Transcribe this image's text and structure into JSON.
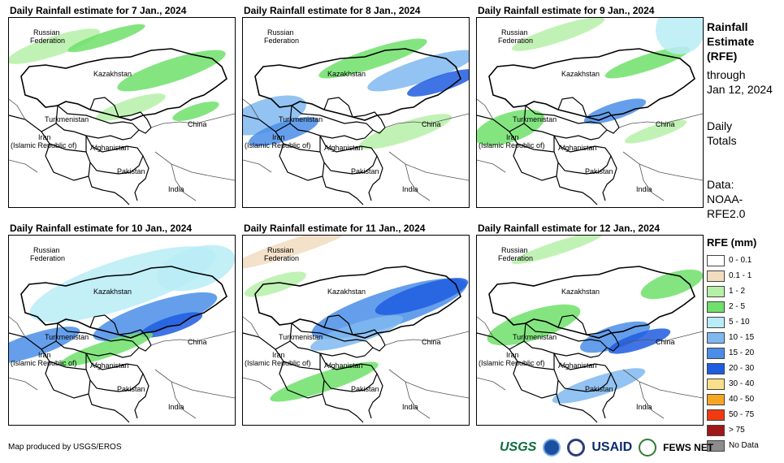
{
  "panels": [
    {
      "title": "Daily Rainfall estimate for 7 Jan., 2024"
    },
    {
      "title": "Daily Rainfall estimate for 8 Jan., 2024"
    },
    {
      "title": "Daily Rainfall estimate for 9 Jan., 2024"
    },
    {
      "title": "Daily Rainfall estimate for 10 Jan., 2024"
    },
    {
      "title": "Daily Rainfall estimate for 11 Jan., 2024"
    },
    {
      "title": "Daily Rainfall estimate for 12 Jan., 2024"
    }
  ],
  "map_labels": {
    "russia_1": "Russian",
    "russia_2": "Federation",
    "kazakhstan": "Kazakhstan",
    "turkmenistan": "Turkmenistan",
    "iran_1": "Iran",
    "iran_2": "(Islamic Republic of)",
    "afghanistan": "Afghanistan",
    "pakistan": "Pakistan",
    "china": "China",
    "india": "India"
  },
  "sidebar": {
    "l1": "Rainfall",
    "l2": "Estimate",
    "l3": "(RFE)",
    "l4": "through",
    "l5": "Jan 12, 2024",
    "l6": "Daily",
    "l7": "Totals",
    "l8": "Data:",
    "l9": "NOAA-",
    "l10": "RFE2.0"
  },
  "legend": {
    "title": "RFE (mm)",
    "items": [
      {
        "label": "0 - 0.1",
        "color": "#ffffff"
      },
      {
        "label": "0.1 - 1",
        "color": "#f2dcc0"
      },
      {
        "label": "1 - 2",
        "color": "#b6f0a8"
      },
      {
        "label": "2 - 5",
        "color": "#6fe06a"
      },
      {
        "label": "5 - 10",
        "color": "#b8ecf6"
      },
      {
        "label": "10 - 15",
        "color": "#7fb8f0"
      },
      {
        "label": "15 - 20",
        "color": "#4a8ee8"
      },
      {
        "label": "20 - 30",
        "color": "#1f5ce0"
      },
      {
        "label": "30 - 40",
        "color": "#f8e08a"
      },
      {
        "label": "40 - 50",
        "color": "#f5a623"
      },
      {
        "label": "50 - 75",
        "color": "#f03a10"
      },
      {
        "label": "> 75",
        "color": "#a01818"
      },
      {
        "label": "No Data",
        "color": "#8c8c8c"
      }
    ]
  },
  "footer": {
    "credit": "Map produced by USGS/EROS"
  },
  "logos": {
    "usgs": "USGS",
    "usaid": "USAID",
    "fews": "FEWS NET"
  }
}
